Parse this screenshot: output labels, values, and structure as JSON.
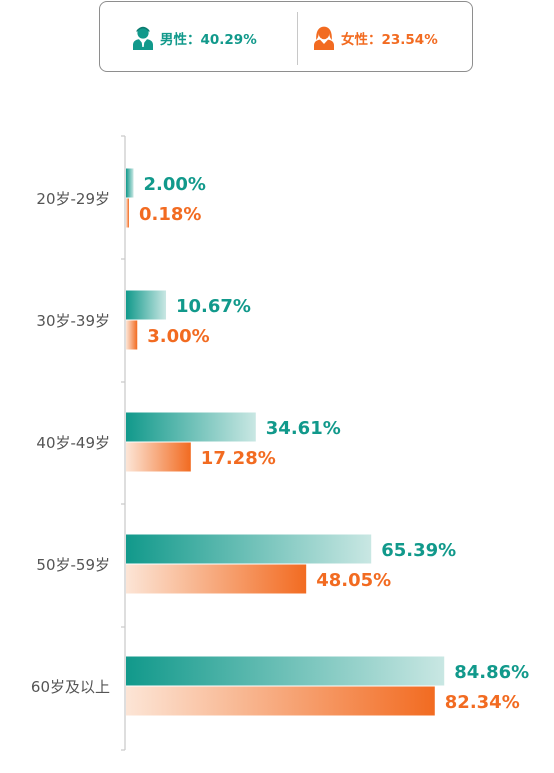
{
  "legend": {
    "male": {
      "label": "男性：40.29%",
      "icon": "male-user-icon",
      "color": "#11998b"
    },
    "female": {
      "label": "女性：23.54%",
      "icon": "female-user-icon",
      "color": "#f26b21"
    }
  },
  "chart_data": {
    "type": "bar",
    "orientation": "horizontal",
    "categories": [
      "20岁-29岁",
      "30岁-39岁",
      "40岁-49岁",
      "50岁-59岁",
      "60岁及以上"
    ],
    "series": [
      {
        "name": "男性",
        "values": [
          2.0,
          10.67,
          34.61,
          65.39,
          84.86
        ],
        "labels": [
          "2.00%",
          "10.67%",
          "34.61%",
          "65.39%",
          "84.86%"
        ],
        "color": "#11998b",
        "gradient_end": "#c9e7e3"
      },
      {
        "name": "女性",
        "values": [
          0.18,
          3.0,
          17.28,
          48.05,
          82.34
        ],
        "labels": [
          "0.18%",
          "3.00%",
          "17.28%",
          "48.05%",
          "82.34%"
        ],
        "color": "#f26b21",
        "gradient_end": "#fce5d6"
      }
    ],
    "xlim": [
      0,
      100
    ],
    "grid": false,
    "legend_position": "top-center"
  }
}
